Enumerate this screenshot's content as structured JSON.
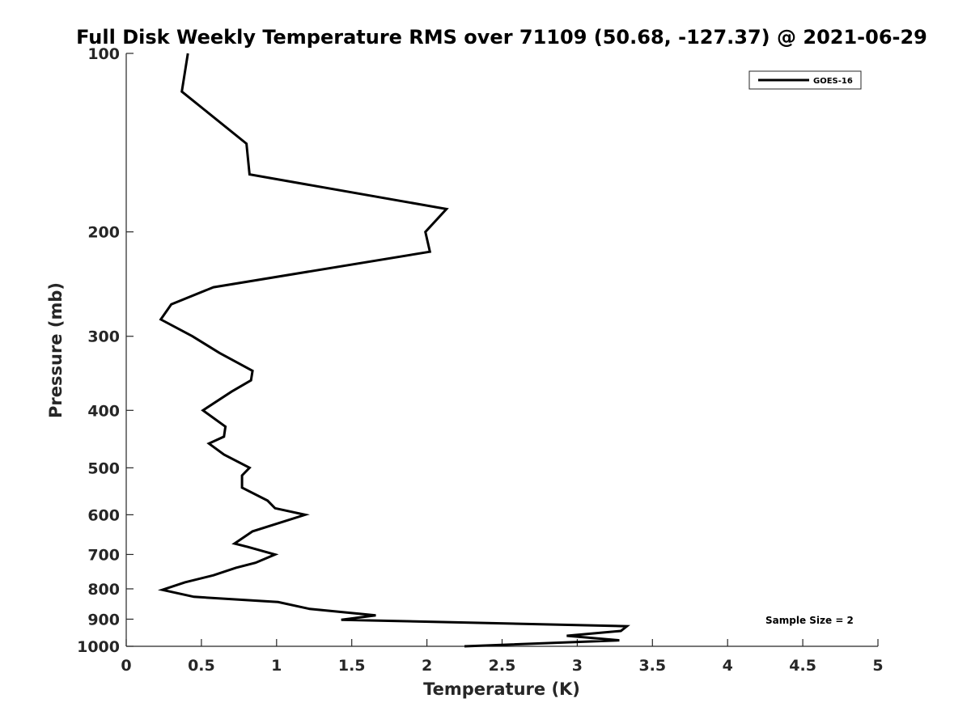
{
  "chart_data": {
    "type": "line",
    "title": "Full Disk Weekly Temperature RMS over 71109 (50.68, -127.37) @ 2021-06-29",
    "xlabel": "Temperature (K)",
    "ylabel": "Pressure (mb)",
    "xlim": [
      0,
      5
    ],
    "ylim": [
      100,
      1000
    ],
    "yscale": "log",
    "yreversed": true,
    "grid": false,
    "legend_position": "top-right",
    "xticks": [
      0,
      0.5,
      1,
      1.5,
      2,
      2.5,
      3,
      3.5,
      4,
      4.5,
      5
    ],
    "xtick_labels": [
      "0",
      "0.5",
      "1",
      "1.5",
      "2",
      "2.5",
      "3",
      "3.5",
      "4",
      "4.5",
      "5"
    ],
    "yticks": [
      100,
      200,
      300,
      400,
      500,
      600,
      700,
      800,
      900,
      1000
    ],
    "ytick_labels": [
      "100",
      "200",
      "300",
      "400",
      "500",
      "600",
      "700",
      "800",
      "900",
      "1000"
    ],
    "annotation": "Sample Size = 2",
    "series": [
      {
        "name": "GOES-16",
        "color": "#000000",
        "points": [
          [
            0.41,
            100
          ],
          [
            0.37,
            116
          ],
          [
            0.8,
            142
          ],
          [
            0.82,
            160
          ],
          [
            2.13,
            183
          ],
          [
            1.99,
            200
          ],
          [
            2.02,
            216
          ],
          [
            0.58,
            248
          ],
          [
            0.3,
            265
          ],
          [
            0.23,
            281
          ],
          [
            0.44,
            300
          ],
          [
            0.62,
            320
          ],
          [
            0.84,
            343
          ],
          [
            0.83,
            356
          ],
          [
            0.7,
            372
          ],
          [
            0.51,
            400
          ],
          [
            0.66,
            426
          ],
          [
            0.65,
            443
          ],
          [
            0.55,
            455
          ],
          [
            0.65,
            475
          ],
          [
            0.82,
            500
          ],
          [
            0.77,
            515
          ],
          [
            0.77,
            540
          ],
          [
            0.94,
            568
          ],
          [
            0.99,
            585
          ],
          [
            1.19,
            600
          ],
          [
            0.84,
            640
          ],
          [
            0.72,
            671
          ],
          [
            0.81,
            680
          ],
          [
            0.99,
            700
          ],
          [
            0.86,
            723
          ],
          [
            0.73,
            737
          ],
          [
            0.58,
            759
          ],
          [
            0.39,
            780
          ],
          [
            0.24,
            803
          ],
          [
            0.45,
            825
          ],
          [
            1.01,
            842
          ],
          [
            1.22,
            865
          ],
          [
            1.66,
            887
          ],
          [
            1.43,
            902
          ],
          [
            3.33,
            925
          ],
          [
            3.29,
            942
          ],
          [
            2.93,
            960
          ],
          [
            3.28,
            977
          ],
          [
            2.25,
            1000
          ]
        ]
      }
    ]
  }
}
